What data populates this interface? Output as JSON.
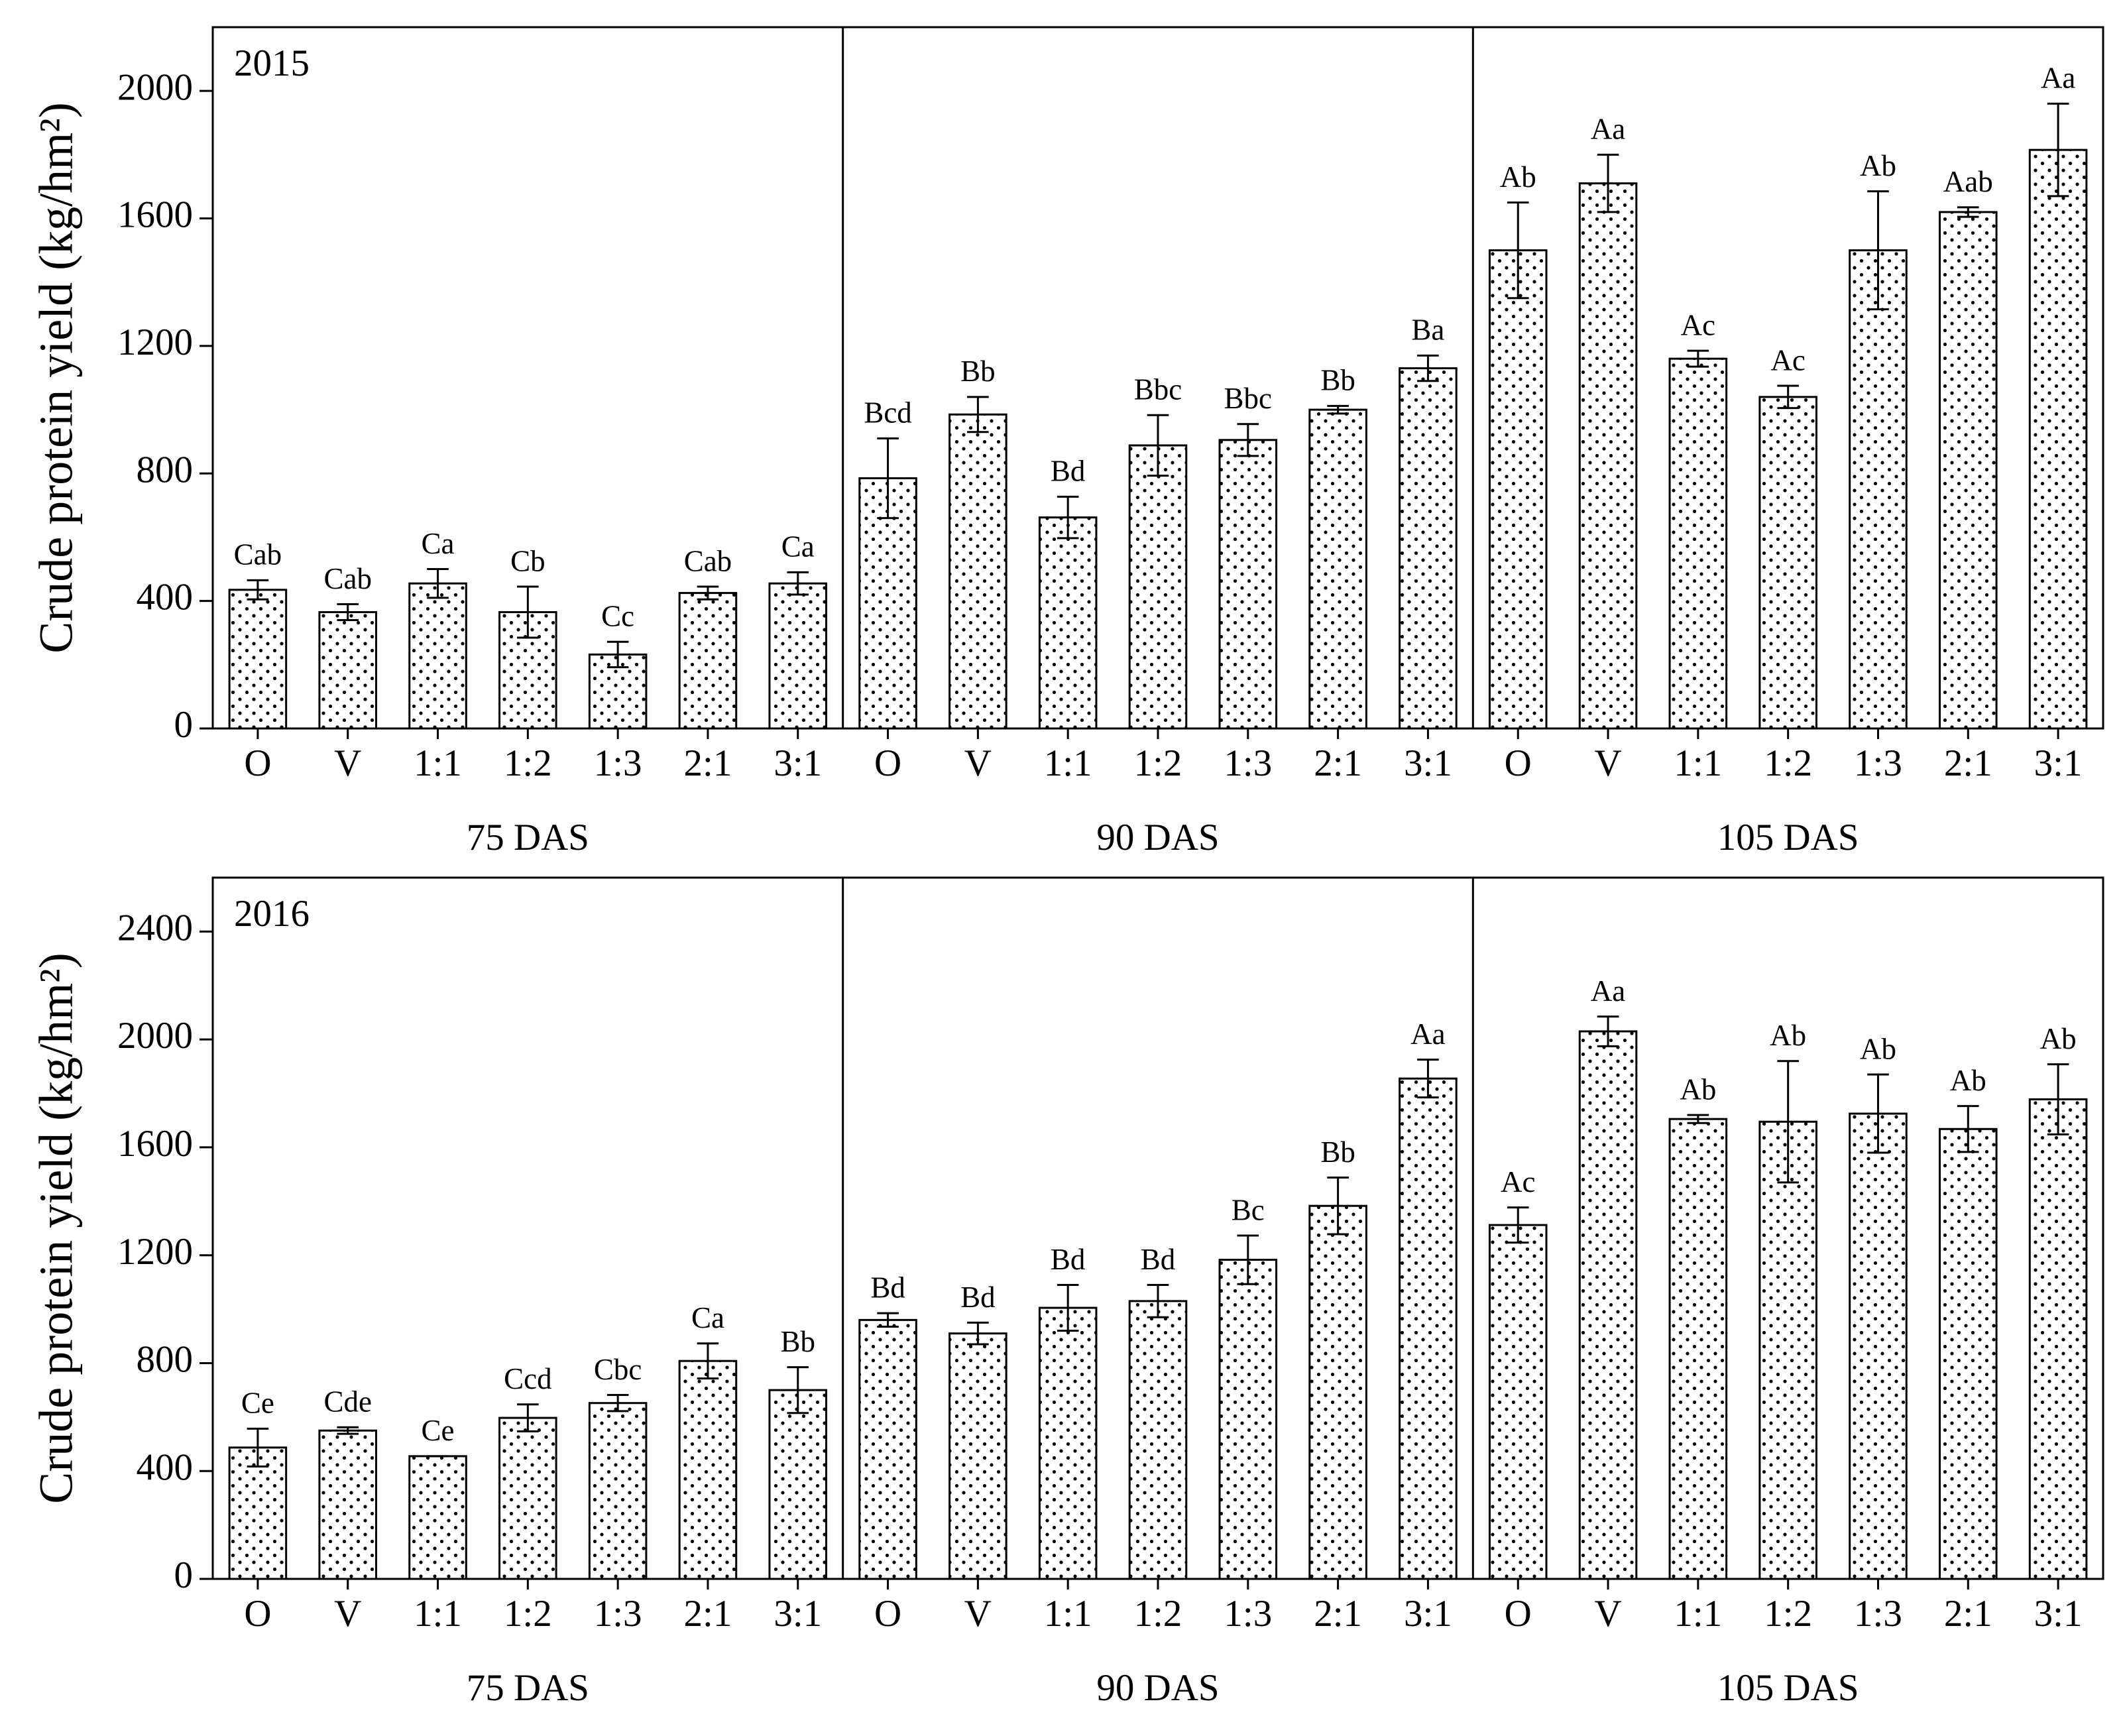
{
  "chart_data": [
    {
      "type": "bar",
      "label": "2015",
      "y_label": "Crude protein yield (kg/hm²)",
      "groups": [
        "75 DAS",
        "90 DAS",
        "105 DAS"
      ],
      "categories": [
        "O",
        "V",
        "1:1",
        "1:2",
        "1:3",
        "2:1",
        "3:1",
        "O",
        "V",
        "1:1",
        "1:2",
        "1:3",
        "2:1",
        "3:1",
        "O",
        "V",
        "1:1",
        "1:2",
        "1:3",
        "2:1",
        "3:1"
      ],
      "values": [
        435,
        365,
        455,
        365,
        232,
        425,
        455,
        785,
        985,
        662,
        888,
        905,
        1000,
        1130,
        1500,
        1710,
        1160,
        1040,
        1500,
        1620,
        1815
      ],
      "errors": [
        30,
        25,
        45,
        80,
        40,
        20,
        35,
        125,
        55,
        65,
        95,
        50,
        12,
        40,
        150,
        90,
        25,
        35,
        185,
        15,
        145
      ],
      "letters": [
        "Cab",
        "Cab",
        "Ca",
        "Cb",
        "Cc",
        "Cab",
        "Ca",
        "Bcd",
        "Bb",
        "Bd",
        "Bbc",
        "Bbc",
        "Bb",
        "Ba",
        "Ab",
        "Aa",
        "Ac",
        "Ac",
        "Ab",
        "Aab",
        "Aa"
      ],
      "ylim": [
        0,
        2200
      ],
      "yticks": [
        0,
        400,
        800,
        1200,
        1600,
        2000
      ],
      "color": "#000000"
    },
    {
      "type": "bar",
      "label": "2016",
      "y_label": "Crude protein yield (kg/hm²)",
      "groups": [
        "75 DAS",
        "90 DAS",
        "105 DAS"
      ],
      "categories": [
        "O",
        "V",
        "1:1",
        "1:2",
        "1:3",
        "2:1",
        "3:1",
        "O",
        "V",
        "1:1",
        "1:2",
        "1:3",
        "2:1",
        "3:1",
        "O",
        "V",
        "1:1",
        "1:2",
        "1:3",
        "2:1",
        "3:1"
      ],
      "values": [
        487,
        550,
        455,
        597,
        652,
        808,
        700,
        960,
        910,
        1005,
        1030,
        1183,
        1383,
        1855,
        1312,
        2030,
        1705,
        1695,
        1725,
        1668,
        1778
      ],
      "errors": [
        70,
        12,
        0,
        50,
        30,
        65,
        85,
        25,
        40,
        85,
        60,
        90,
        105,
        70,
        65,
        55,
        15,
        225,
        145,
        85,
        130
      ],
      "letters": [
        "Ce",
        "Cde",
        "Ce",
        "Ccd",
        "Cbc",
        "Ca",
        "Bb",
        "Bd",
        "Bd",
        "Bd",
        "Bd",
        "Bc",
        "Bb",
        "Aa",
        "Ac",
        "Aa",
        "Ab",
        "Ab",
        "Ab",
        "Ab",
        "Ab"
      ],
      "ylim": [
        0,
        2600
      ],
      "yticks": [
        0,
        400,
        800,
        1200,
        1600,
        2000,
        2400
      ],
      "color": "#000000"
    }
  ]
}
